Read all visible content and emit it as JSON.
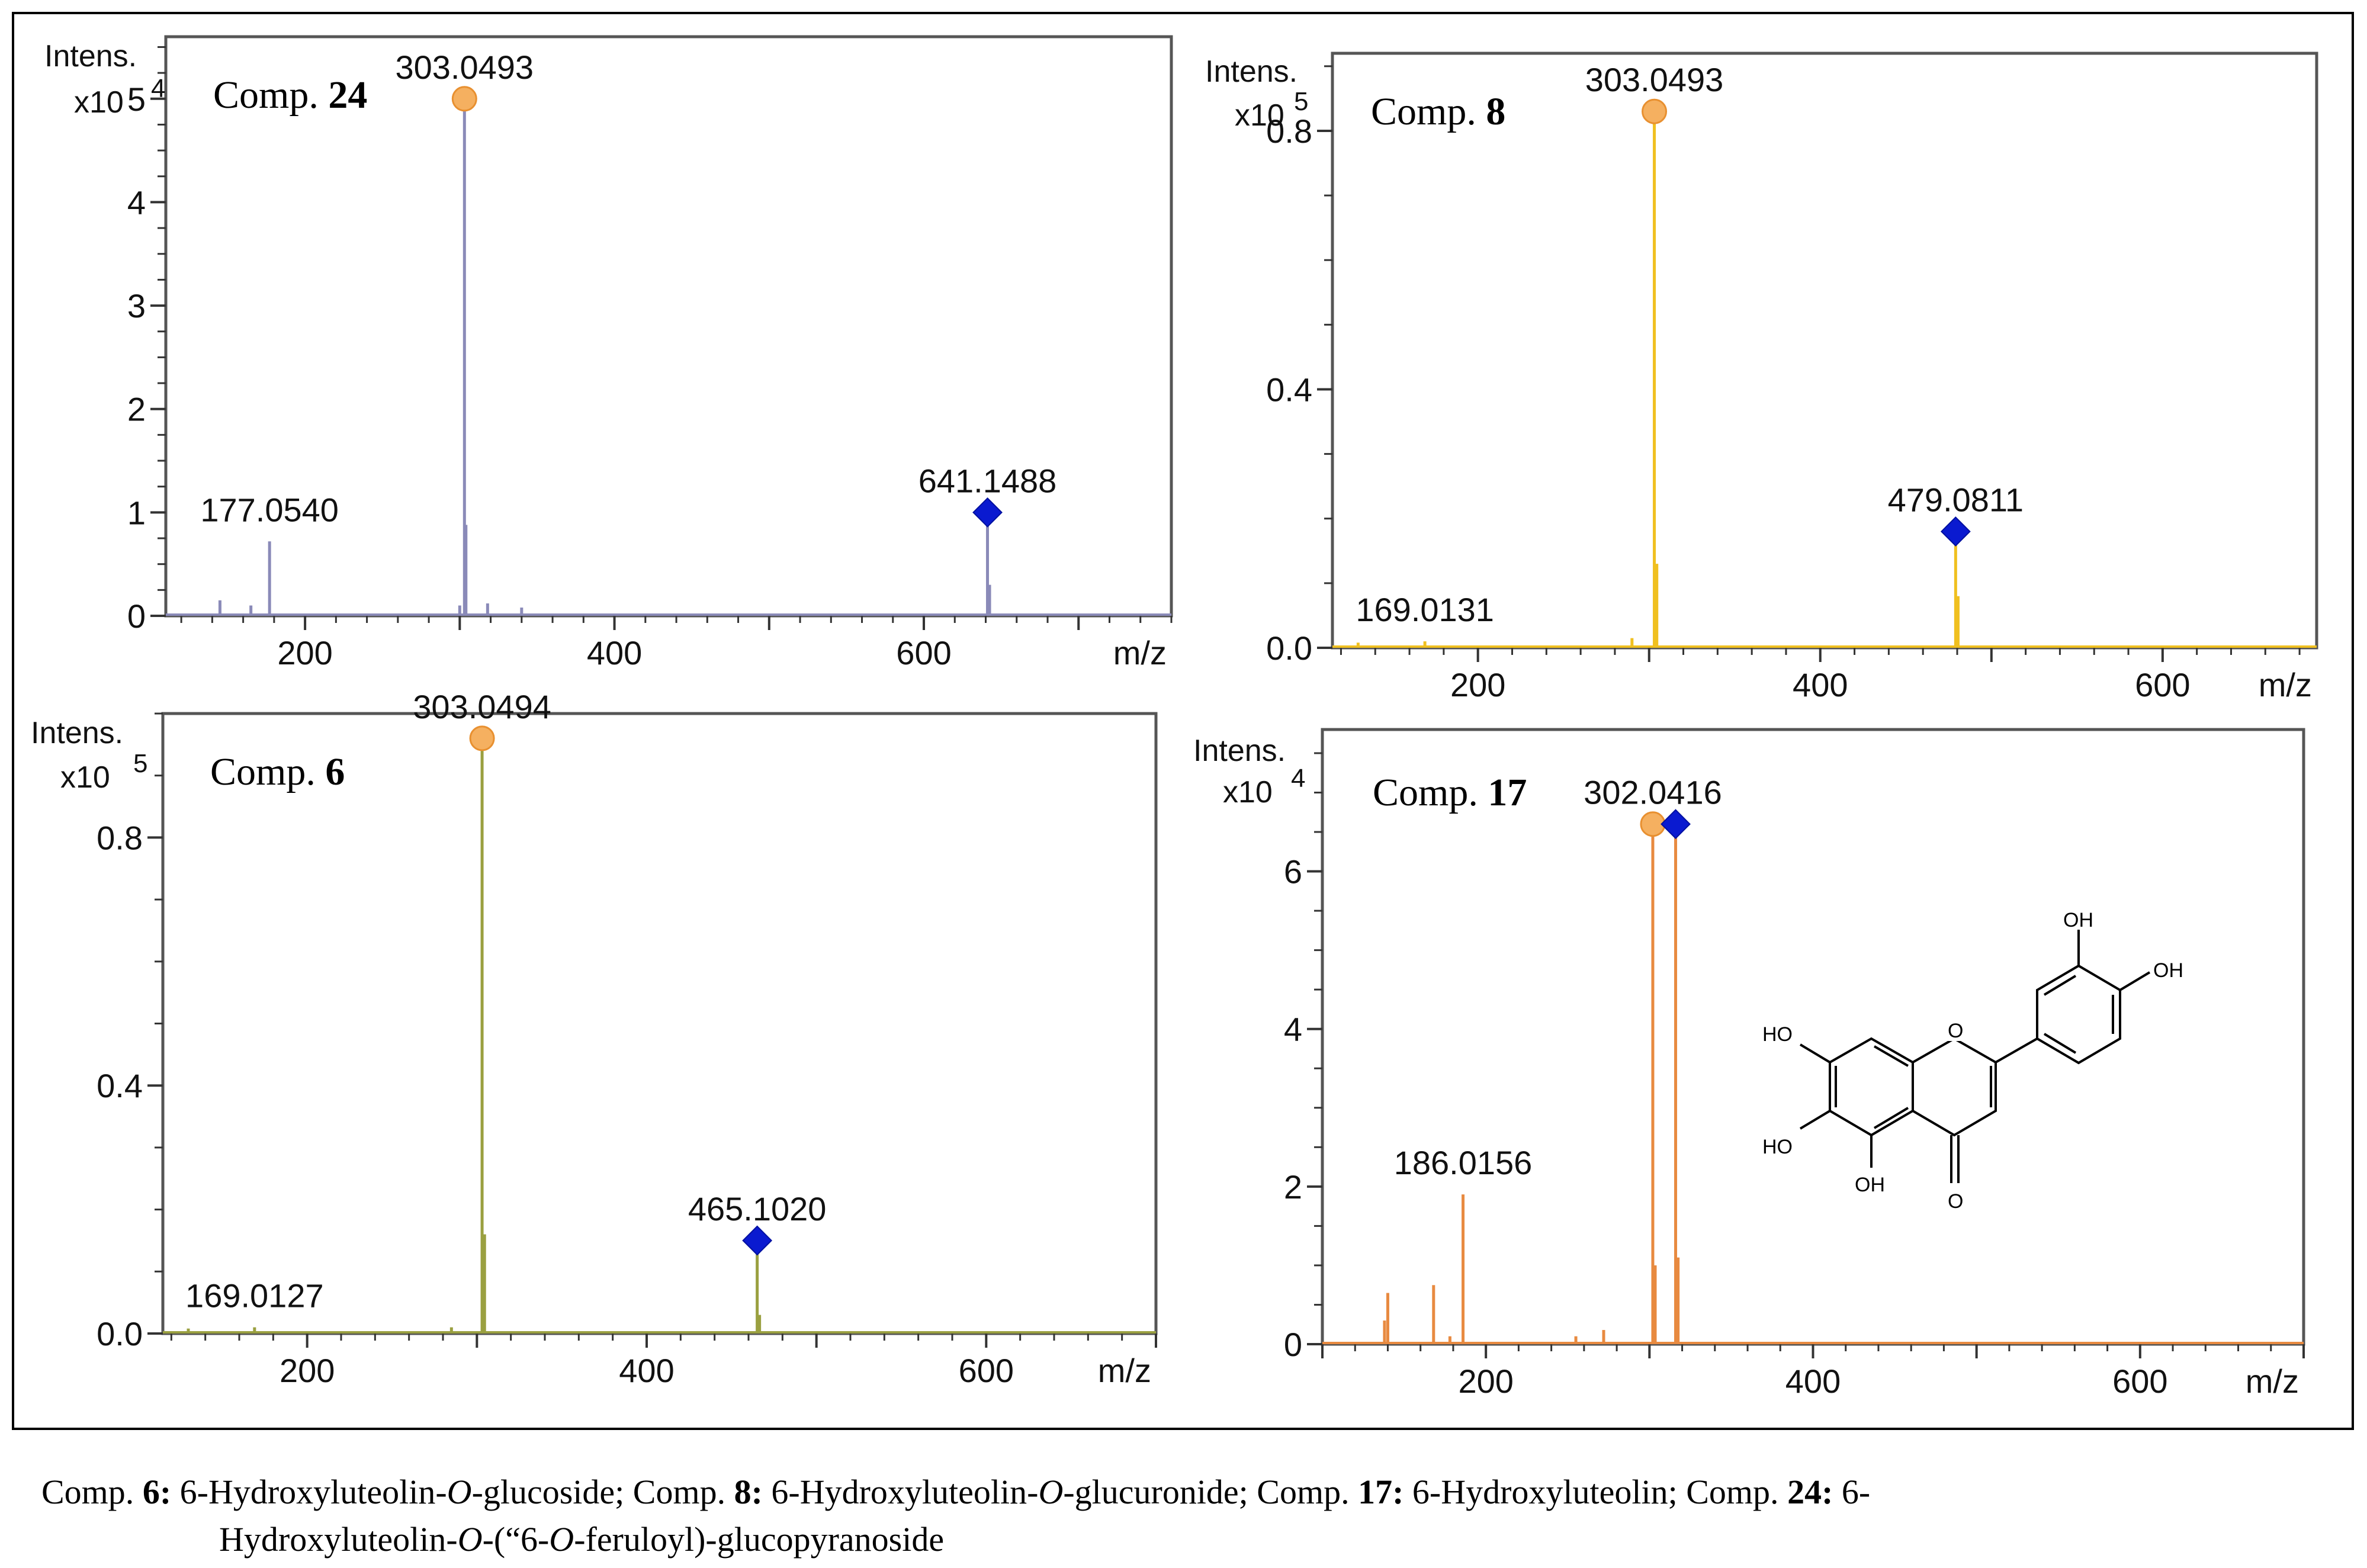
{
  "chart_data": [
    {
      "type": "bar",
      "compound_label": "Comp.",
      "compound_number": "24",
      "y_label_line1": "Intens.",
      "y_label_line2": "x10",
      "y_exponent": "4",
      "x_label": "m/z",
      "xlim": [
        110,
        760
      ],
      "ylim": [
        0,
        5.6
      ],
      "x_ticks": [
        200,
        400,
        600
      ],
      "y_ticks": [
        0,
        1,
        2,
        3,
        4,
        5
      ],
      "y_tick_labels": [
        "0",
        "1",
        "2",
        "3",
        "4",
        "5"
      ],
      "color": "#8a8ab8",
      "peaks": [
        {
          "mz": 145,
          "intensity": 0.15
        },
        {
          "mz": 165,
          "intensity": 0.1
        },
        {
          "mz": 177.054,
          "intensity": 0.72
        },
        {
          "mz": 300,
          "intensity": 0.1
        },
        {
          "mz": 303.0493,
          "intensity": 5.0
        },
        {
          "mz": 304,
          "intensity": 0.88
        },
        {
          "mz": 318,
          "intensity": 0.12
        },
        {
          "mz": 340,
          "intensity": 0.08
        },
        {
          "mz": 641.1488,
          "intensity": 1.0
        },
        {
          "mz": 642.5,
          "intensity": 0.3
        }
      ],
      "annotations": [
        {
          "label": "177.0540",
          "mz": 177.054,
          "intensity": 0.72
        },
        {
          "label": "303.0493",
          "mz": 303.0493,
          "intensity": 5.0,
          "marker": "circle"
        },
        {
          "label": "641.1488",
          "mz": 641.1488,
          "intensity": 1.0,
          "marker": "diamond"
        }
      ]
    },
    {
      "type": "bar",
      "compound_label": "Comp.",
      "compound_number": "8",
      "y_label_line1": "Intens.",
      "y_label_line2": "x10",
      "y_exponent": "5",
      "x_label": "m/z",
      "xlim": [
        115,
        690
      ],
      "ylim": [
        0,
        0.92
      ],
      "x_ticks": [
        200,
        400,
        600
      ],
      "y_ticks": [
        0,
        0.4,
        0.8
      ],
      "y_tick_labels": [
        "0.0",
        "0.4",
        "0.8"
      ],
      "color": "#f0c020",
      "peaks": [
        {
          "mz": 130,
          "intensity": 0.008
        },
        {
          "mz": 169.0131,
          "intensity": 0.01
        },
        {
          "mz": 290,
          "intensity": 0.015
        },
        {
          "mz": 303.0493,
          "intensity": 0.83
        },
        {
          "mz": 304.5,
          "intensity": 0.13
        },
        {
          "mz": 479.0811,
          "intensity": 0.18
        },
        {
          "mz": 480.5,
          "intensity": 0.08
        }
      ],
      "annotations": [
        {
          "label": "169.0131",
          "mz": 169.0131,
          "intensity": 0.01
        },
        {
          "label": "303.0493",
          "mz": 303.0493,
          "intensity": 0.83,
          "marker": "circle"
        },
        {
          "label": "479.0811",
          "mz": 479.0811,
          "intensity": 0.18,
          "marker": "diamond"
        }
      ]
    },
    {
      "type": "bar",
      "compound_label": "Comp.",
      "compound_number": "6",
      "y_label_line1": "Intens.",
      "y_label_line2": "x10",
      "y_exponent": "5",
      "x_label": "m/z",
      "xlim": [
        115,
        700
      ],
      "ylim": [
        0,
        1.0
      ],
      "x_ticks": [
        200,
        400,
        600
      ],
      "y_ticks": [
        0,
        0.4,
        0.8
      ],
      "y_tick_labels": [
        "0.0",
        "0.4",
        "0.8"
      ],
      "color": "#9aa040",
      "peaks": [
        {
          "mz": 130,
          "intensity": 0.008
        },
        {
          "mz": 169.0127,
          "intensity": 0.01
        },
        {
          "mz": 285,
          "intensity": 0.01
        },
        {
          "mz": 303.0494,
          "intensity": 0.96
        },
        {
          "mz": 304.5,
          "intensity": 0.16
        },
        {
          "mz": 465.102,
          "intensity": 0.15
        },
        {
          "mz": 466.5,
          "intensity": 0.03
        }
      ],
      "annotations": [
        {
          "label": "169.0127",
          "mz": 169.0127,
          "intensity": 0.01
        },
        {
          "label": "303.0494",
          "mz": 303.0494,
          "intensity": 0.96,
          "marker": "circle"
        },
        {
          "label": "465.1020",
          "mz": 465.102,
          "intensity": 0.15,
          "marker": "diamond"
        }
      ]
    },
    {
      "type": "bar",
      "compound_label": "Comp.",
      "compound_number": "17",
      "y_label_line1": "Intens.",
      "y_label_line2": "x10",
      "y_exponent": "4",
      "x_label": "m/z",
      "xlim": [
        100,
        700
      ],
      "ylim": [
        0,
        7.8
      ],
      "x_ticks": [
        200,
        400,
        600
      ],
      "y_ticks": [
        0,
        2,
        4,
        6
      ],
      "y_tick_labels": [
        "0",
        "2",
        "4",
        "6"
      ],
      "color": "#e88a40",
      "peaks": [
        {
          "mz": 138,
          "intensity": 0.3
        },
        {
          "mz": 140,
          "intensity": 0.65
        },
        {
          "mz": 168,
          "intensity": 0.75
        },
        {
          "mz": 178,
          "intensity": 0.1
        },
        {
          "mz": 186.0156,
          "intensity": 1.9
        },
        {
          "mz": 255,
          "intensity": 0.1
        },
        {
          "mz": 272,
          "intensity": 0.18
        },
        {
          "mz": 302.0416,
          "intensity": 6.6
        },
        {
          "mz": 303.5,
          "intensity": 1.0
        },
        {
          "mz": 316,
          "intensity": 6.6
        },
        {
          "mz": 317.5,
          "intensity": 1.1
        }
      ],
      "annotations": [
        {
          "label": "186.0156",
          "mz": 186.0156,
          "intensity": 1.9
        },
        {
          "label": "302.0416",
          "mz": 302.0416,
          "intensity": 6.6,
          "marker": "circle"
        },
        {
          "marker_only": true,
          "mz": 316,
          "intensity": 6.6,
          "marker": "diamond"
        }
      ],
      "structure_labels": [
        "OH",
        "OH",
        "HO",
        "HO",
        "OH",
        "O",
        "O"
      ]
    }
  ],
  "caption": {
    "c6_prefix": "Comp. ",
    "c6_num": "6:",
    "c6_text_a": " 6-Hydroxyluteolin-",
    "c6_italic": "O",
    "c6_text_b": "-glucoside; Comp. ",
    "c8_num": "8:",
    "c8_text_a": " 6-Hydroxyluteolin-",
    "c8_italic": "O",
    "c8_text_b": "-glucuronide; Comp. ",
    "c17_num": "17:",
    "c17_text": " 6-Hydroxyluteolin; Comp. ",
    "c24_num": "24:",
    "c24_text_a": " 6-",
    "line2_a": "Hydroxyluteolin-",
    "line2_italic1": "O",
    "line2_b": "-(“6-",
    "line2_italic2": "O",
    "line2_c": "-feruloyl)-glucopyranoside"
  }
}
